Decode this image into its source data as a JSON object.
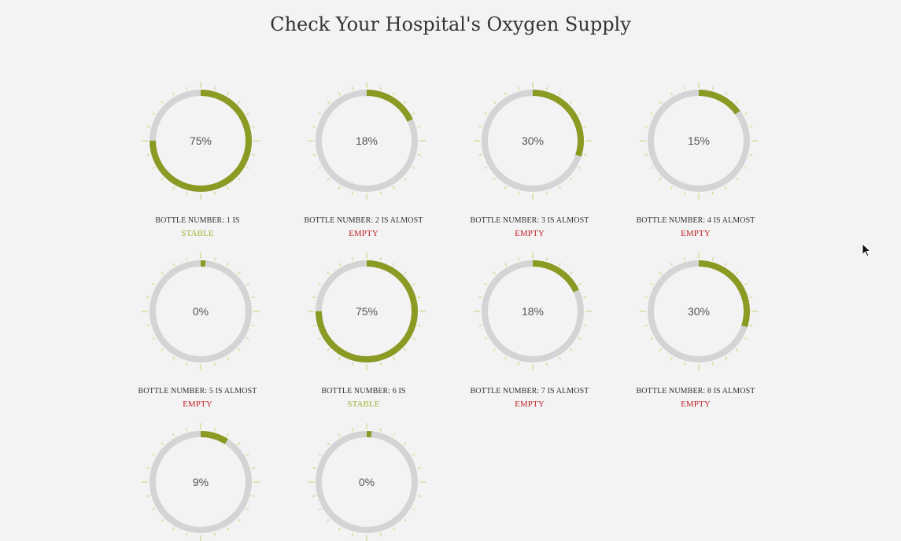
{
  "page": {
    "title": "Check Your Hospital's Oxygen Supply"
  },
  "colors": {
    "fill": "#8a9a23",
    "track": "#d4d4d4",
    "tick": "#c8d27a",
    "stable": "#9bb83a",
    "empty": "#c0242c"
  },
  "bottles": [
    {
      "percent": 75,
      "percent_text": "75%",
      "caption": "BOTTLE NUMBER: 1 IS",
      "status": "STABLE",
      "state": "stable"
    },
    {
      "percent": 18,
      "percent_text": "18%",
      "caption": "BOTTLE NUMBER: 2 IS ALMOST",
      "status": "EMPTY",
      "state": "empty"
    },
    {
      "percent": 30,
      "percent_text": "30%",
      "caption": "BOTTLE NUMBER: 3 IS ALMOST",
      "status": "EMPTY",
      "state": "empty"
    },
    {
      "percent": 15,
      "percent_text": "15%",
      "caption": "BOTTLE NUMBER: 4 IS ALMOST",
      "status": "EMPTY",
      "state": "empty"
    },
    {
      "percent": 0,
      "percent_text": "0%",
      "caption": "BOTTLE NUMBER: 5 IS ALMOST",
      "status": "EMPTY",
      "state": "empty"
    },
    {
      "percent": 75,
      "percent_text": "75%",
      "caption": "BOTTLE NUMBER: 6 IS",
      "status": "STABLE",
      "state": "stable"
    },
    {
      "percent": 18,
      "percent_text": "18%",
      "caption": "BOTTLE NUMBER: 7 IS ALMOST",
      "status": "EMPTY",
      "state": "empty"
    },
    {
      "percent": 30,
      "percent_text": "30%",
      "caption": "BOTTLE NUMBER: 8 IS ALMOST",
      "status": "EMPTY",
      "state": "empty"
    },
    {
      "percent": 9,
      "percent_text": "9%"
    },
    {
      "percent": 0,
      "percent_text": "0%"
    }
  ]
}
